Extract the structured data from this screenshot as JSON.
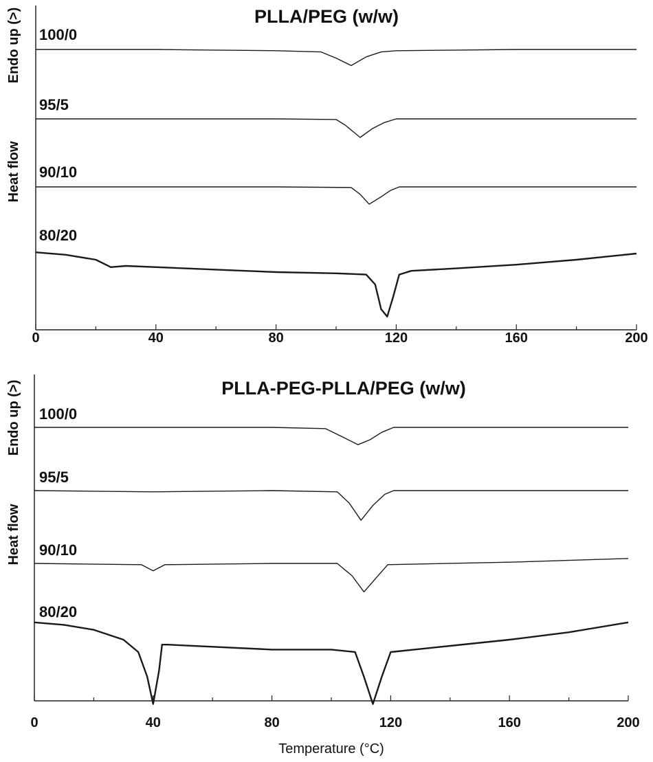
{
  "chart_data": [
    {
      "type": "line",
      "title": "PLLA/PEG (w/w)",
      "xlabel": "",
      "ylabel_top": "Endo up (>)",
      "ylabel_bottom": "Heat flow",
      "xlim": [
        0,
        200
      ],
      "xticks": [
        0,
        40,
        80,
        120,
        160,
        200
      ],
      "xtick_labels": [
        "0",
        "40",
        "80",
        "120",
        "160",
        "200"
      ],
      "grid": false,
      "legend": "none",
      "line_color": "#1a1a1a",
      "series": [
        {
          "name": "100/0",
          "points": [
            [
              0,
              0
            ],
            [
              20,
              0
            ],
            [
              40,
              0
            ],
            [
              60,
              -0.05
            ],
            [
              80,
              -0.1
            ],
            [
              95,
              -0.2
            ],
            [
              100,
              -0.7
            ],
            [
              105,
              -1.3
            ],
            [
              110,
              -0.6
            ],
            [
              115,
              -0.2
            ],
            [
              120,
              -0.1
            ],
            [
              140,
              -0.05
            ],
            [
              160,
              0
            ],
            [
              180,
              0
            ],
            [
              200,
              0
            ]
          ]
        },
        {
          "name": "95/5",
          "points": [
            [
              0,
              0
            ],
            [
              40,
              0
            ],
            [
              80,
              0
            ],
            [
              100,
              -0.05
            ],
            [
              103,
              -0.5
            ],
            [
              108,
              -1.5
            ],
            [
              112,
              -0.8
            ],
            [
              116,
              -0.3
            ],
            [
              120,
              0
            ],
            [
              160,
              0
            ],
            [
              200,
              0
            ]
          ]
        },
        {
          "name": "90/10",
          "points": [
            [
              0,
              0
            ],
            [
              40,
              0
            ],
            [
              80,
              0
            ],
            [
              105,
              -0.05
            ],
            [
              108,
              -0.6
            ],
            [
              111,
              -1.4
            ],
            [
              115,
              -0.8
            ],
            [
              118,
              -0.3
            ],
            [
              121,
              0
            ],
            [
              160,
              0
            ],
            [
              200,
              0
            ]
          ]
        },
        {
          "name": "80/20",
          "points": [
            [
              0,
              0.6
            ],
            [
              10,
              0.4
            ],
            [
              20,
              0
            ],
            [
              25,
              -0.6
            ],
            [
              30,
              -0.5
            ],
            [
              60,
              -0.8
            ],
            [
              80,
              -1.0
            ],
            [
              100,
              -1.1
            ],
            [
              110,
              -1.2
            ],
            [
              113,
              -2.0
            ],
            [
              115,
              -4.0
            ],
            [
              117,
              -4.6
            ],
            [
              119,
              -3.0
            ],
            [
              121,
              -1.2
            ],
            [
              125,
              -0.9
            ],
            [
              140,
              -0.7
            ],
            [
              160,
              -0.4
            ],
            [
              180,
              0
            ],
            [
              200,
              0.5
            ]
          ]
        }
      ]
    },
    {
      "type": "line",
      "title": "PLLA-PEG-PLLA/PEG (w/w)",
      "xlabel": "Temperature (°C)",
      "ylabel_top": "Endo up (>)",
      "ylabel_bottom": "Heat flow",
      "xlim": [
        0,
        200
      ],
      "xticks": [
        0,
        40,
        80,
        120,
        160,
        200
      ],
      "xtick_labels": [
        "0",
        "40",
        "80",
        "120",
        "160",
        "200"
      ],
      "grid": false,
      "legend": "none",
      "line_color": "#1a1a1a",
      "series": [
        {
          "name": "100/0",
          "points": [
            [
              0,
              0
            ],
            [
              40,
              0
            ],
            [
              80,
              0
            ],
            [
              98,
              -0.1
            ],
            [
              104,
              -0.8
            ],
            [
              109,
              -1.4
            ],
            [
              113,
              -1.0
            ],
            [
              117,
              -0.4
            ],
            [
              121,
              0
            ],
            [
              160,
              0
            ],
            [
              200,
              0
            ]
          ]
        },
        {
          "name": "95/5",
          "points": [
            [
              0,
              0
            ],
            [
              40,
              -0.1
            ],
            [
              80,
              0
            ],
            [
              102,
              -0.1
            ],
            [
              106,
              -1.0
            ],
            [
              110,
              -2.4
            ],
            [
              114,
              -1.2
            ],
            [
              118,
              -0.3
            ],
            [
              121,
              0
            ],
            [
              160,
              0
            ],
            [
              200,
              0
            ]
          ]
        },
        {
          "name": "90/10",
          "points": [
            [
              0,
              0
            ],
            [
              36,
              -0.1
            ],
            [
              40,
              -0.6
            ],
            [
              44,
              -0.1
            ],
            [
              80,
              0
            ],
            [
              102,
              0
            ],
            [
              107,
              -1.0
            ],
            [
              111,
              -2.3
            ],
            [
              115,
              -1.2
            ],
            [
              119,
              -0.1
            ],
            [
              160,
              0.1
            ],
            [
              200,
              0.4
            ]
          ]
        },
        {
          "name": "80/20",
          "points": [
            [
              0,
              0.4
            ],
            [
              10,
              0.2
            ],
            [
              20,
              -0.2
            ],
            [
              30,
              -1.0
            ],
            [
              35,
              -2.0
            ],
            [
              38,
              -4.0
            ],
            [
              40,
              -6.2
            ],
            [
              42,
              -3.5
            ],
            [
              43,
              -1.4
            ],
            [
              45,
              -1.4
            ],
            [
              80,
              -1.8
            ],
            [
              100,
              -1.8
            ],
            [
              108,
              -2.0
            ],
            [
              111,
              -4.0
            ],
            [
              114,
              -6.2
            ],
            [
              117,
              -4.0
            ],
            [
              120,
              -2.0
            ],
            [
              140,
              -1.5
            ],
            [
              160,
              -1.0
            ],
            [
              180,
              -0.4
            ],
            [
              200,
              0.4
            ]
          ]
        }
      ]
    }
  ]
}
